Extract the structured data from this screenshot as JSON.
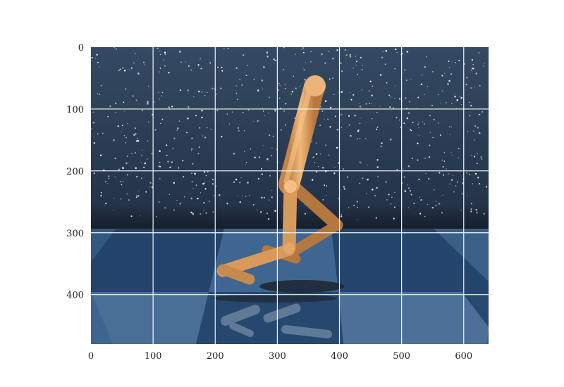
{
  "render": {
    "type": "imshow",
    "image_content": "MuJoCo Walker2d-style simulation frame: orange capsule-limbed walker on a checkered blue floor with a starry dark-blue sky backdrop",
    "x_ticks": [
      "0",
      "100",
      "200",
      "300",
      "400",
      "500",
      "600"
    ],
    "y_ticks": [
      "0",
      "100",
      "200",
      "300",
      "400"
    ],
    "x_range": [
      0,
      640
    ],
    "y_range": [
      0,
      480
    ],
    "grid": true,
    "colors": {
      "sky_top": "#3a5068",
      "sky_bottom": "#1e2c3c",
      "floor_dark": "#26466a",
      "floor_light": "#4a6f96",
      "body": "#e0a060",
      "body_shade": "#b47a3e",
      "grid_line": "#ffffff"
    }
  }
}
